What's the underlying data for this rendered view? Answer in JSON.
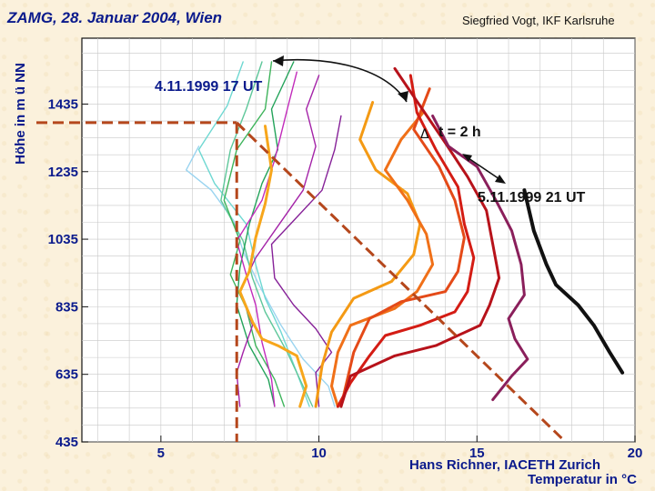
{
  "header": {
    "left_title": "ZAMG, 28. Januar 2004, Wien",
    "right_title": "Siegfried Vogt, IKF Karlsruhe"
  },
  "footer": {
    "credit": "Hans Richner, IACETH Zurich"
  },
  "chart_data": {
    "type": "line",
    "title": "",
    "xlabel": "Temperatur in °C",
    "ylabel": "Höhe in m ü NN",
    "xlim": [
      2.5,
      20
    ],
    "ylim": [
      435,
      1630
    ],
    "x_ticks": [
      5,
      10,
      15,
      20
    ],
    "y_ticks": [
      435,
      635,
      835,
      1035,
      1235,
      1435
    ],
    "grid": true,
    "annotations": {
      "start_label": "4.11.1999 17 UT",
      "end_label": "5.11.1999 21 UT",
      "interval_label": "t = 2 h",
      "triangle_symbol": "Δ"
    },
    "guides": {
      "dashed_color": "#b5471c",
      "vertical_x": 7.4,
      "horizontal_y": 1380,
      "diagonal": [
        [
          7.4,
          1380
        ],
        [
          17.8,
          435
        ]
      ]
    },
    "series": [
      {
        "color": "#9ad4f0",
        "points": [
          [
            6.2,
            1310
          ],
          [
            5.8,
            1240
          ],
          [
            6.6,
            1180
          ],
          [
            7.3,
            1090
          ],
          [
            7.6,
            1000
          ],
          [
            8.1,
            900
          ],
          [
            8.8,
            780
          ],
          [
            9.5,
            680
          ],
          [
            10.3,
            600
          ],
          [
            10.5,
            540
          ]
        ]
      },
      {
        "color": "#6fd8d2",
        "points": [
          [
            7.6,
            1560
          ],
          [
            7.1,
            1430
          ],
          [
            6.2,
            1300
          ],
          [
            6.7,
            1200
          ],
          [
            7.7,
            1080
          ],
          [
            8.0,
            960
          ],
          [
            8.3,
            860
          ],
          [
            8.8,
            760
          ],
          [
            9.3,
            640
          ],
          [
            9.7,
            540
          ]
        ]
      },
      {
        "color": "#5ec79a",
        "points": [
          [
            8.2,
            1560
          ],
          [
            7.7,
            1420
          ],
          [
            7.2,
            1300
          ],
          [
            6.9,
            1150
          ],
          [
            7.6,
            1030
          ],
          [
            7.9,
            920
          ],
          [
            8.3,
            820
          ],
          [
            9.0,
            700
          ],
          [
            9.4,
            620
          ],
          [
            9.8,
            540
          ]
        ]
      },
      {
        "color": "#3fb45c",
        "points": [
          [
            8.5,
            1560
          ],
          [
            8.3,
            1420
          ],
          [
            7.4,
            1300
          ],
          [
            7.0,
            1150
          ],
          [
            7.5,
            1030
          ],
          [
            7.2,
            930
          ],
          [
            7.7,
            830
          ],
          [
            8.0,
            720
          ],
          [
            8.6,
            620
          ],
          [
            8.9,
            540
          ]
        ]
      },
      {
        "color": "#23a35a",
        "points": [
          [
            9.2,
            1560
          ],
          [
            8.5,
            1420
          ],
          [
            8.7,
            1300
          ],
          [
            8.2,
            1200
          ],
          [
            7.8,
            1080
          ],
          [
            7.5,
            950
          ],
          [
            7.4,
            840
          ],
          [
            7.8,
            720
          ],
          [
            8.4,
            620
          ],
          [
            8.6,
            540
          ]
        ]
      },
      {
        "color": "#c22bbb",
        "points": [
          [
            9.3,
            1530
          ],
          [
            9.0,
            1420
          ],
          [
            8.6,
            1270
          ],
          [
            8.2,
            1150
          ],
          [
            7.4,
            1030
          ],
          [
            7.7,
            930
          ],
          [
            8.0,
            840
          ],
          [
            8.2,
            730
          ],
          [
            8.5,
            620
          ],
          [
            8.6,
            540
          ]
        ]
      },
      {
        "color": "#a423a8",
        "points": [
          [
            10.0,
            1520
          ],
          [
            9.6,
            1420
          ],
          [
            9.9,
            1310
          ],
          [
            9.5,
            1180
          ],
          [
            8.6,
            1060
          ],
          [
            8.0,
            980
          ],
          [
            7.5,
            880
          ],
          [
            7.9,
            780
          ],
          [
            7.6,
            700
          ],
          [
            7.4,
            640
          ],
          [
            7.5,
            540
          ]
        ]
      },
      {
        "color": "#862198",
        "points": [
          [
            10.7,
            1400
          ],
          [
            10.5,
            1300
          ],
          [
            10.1,
            1180
          ],
          [
            9.2,
            1090
          ],
          [
            8.5,
            1020
          ],
          [
            8.6,
            920
          ],
          [
            9.2,
            840
          ],
          [
            9.9,
            770
          ],
          [
            10.4,
            700
          ],
          [
            9.9,
            640
          ],
          [
            10.0,
            540
          ]
        ]
      },
      {
        "color": "#f7a61b",
        "points": [
          [
            8.3,
            1370
          ],
          [
            8.5,
            1240
          ],
          [
            8.3,
            1140
          ],
          [
            8.0,
            1040
          ],
          [
            7.8,
            940
          ],
          [
            7.5,
            880
          ],
          [
            7.9,
            790
          ],
          [
            8.2,
            740
          ],
          [
            8.7,
            720
          ],
          [
            9.3,
            690
          ],
          [
            9.6,
            600
          ],
          [
            9.4,
            540
          ]
        ]
      },
      {
        "color": "#f49a14",
        "points": [
          [
            11.7,
            1440
          ],
          [
            11.3,
            1330
          ],
          [
            11.8,
            1240
          ],
          [
            12.8,
            1170
          ],
          [
            13.2,
            1080
          ],
          [
            13.0,
            990
          ],
          [
            12.3,
            910
          ],
          [
            11.1,
            860
          ],
          [
            10.4,
            760
          ],
          [
            10.1,
            660
          ],
          [
            9.9,
            540
          ]
        ]
      },
      {
        "color": "#f07018",
        "points": [
          [
            13.3,
            1410
          ],
          [
            12.6,
            1330
          ],
          [
            12.1,
            1240
          ],
          [
            12.8,
            1150
          ],
          [
            13.4,
            1050
          ],
          [
            13.6,
            960
          ],
          [
            13.1,
            880
          ],
          [
            12.4,
            830
          ],
          [
            11.0,
            780
          ],
          [
            10.6,
            700
          ],
          [
            10.4,
            600
          ],
          [
            10.6,
            540
          ]
        ]
      },
      {
        "color": "#e44a18",
        "points": [
          [
            13.5,
            1480
          ],
          [
            13.0,
            1360
          ],
          [
            13.8,
            1250
          ],
          [
            14.3,
            1150
          ],
          [
            14.6,
            1040
          ],
          [
            14.4,
            940
          ],
          [
            14.0,
            880
          ],
          [
            12.6,
            850
          ],
          [
            11.6,
            800
          ],
          [
            11.1,
            700
          ],
          [
            10.9,
            620
          ],
          [
            10.7,
            540
          ]
        ]
      },
      {
        "color": "#d41c14",
        "points": [
          [
            12.9,
            1520
          ],
          [
            13.1,
            1410
          ],
          [
            13.7,
            1300
          ],
          [
            14.4,
            1190
          ],
          [
            14.6,
            1080
          ],
          [
            14.9,
            980
          ],
          [
            14.7,
            880
          ],
          [
            14.3,
            820
          ],
          [
            13.2,
            780
          ],
          [
            12.1,
            750
          ],
          [
            11.6,
            690
          ],
          [
            11.0,
            610
          ],
          [
            10.6,
            540
          ]
        ]
      },
      {
        "color": "#b7121a",
        "points": [
          [
            12.4,
            1540
          ],
          [
            13.2,
            1430
          ],
          [
            14.0,
            1320
          ],
          [
            14.7,
            1220
          ],
          [
            15.3,
            1120
          ],
          [
            15.5,
            1020
          ],
          [
            15.7,
            920
          ],
          [
            15.4,
            840
          ],
          [
            15.1,
            780
          ],
          [
            13.7,
            720
          ],
          [
            12.4,
            690
          ],
          [
            11.0,
            630
          ],
          [
            10.7,
            540
          ]
        ]
      },
      {
        "color": "#8a1f5b",
        "points": [
          [
            13.6,
            1400
          ],
          [
            14.1,
            1310
          ],
          [
            15.0,
            1250
          ],
          [
            15.6,
            1150
          ],
          [
            16.1,
            1060
          ],
          [
            16.4,
            960
          ],
          [
            16.5,
            870
          ],
          [
            16.0,
            800
          ],
          [
            16.2,
            740
          ],
          [
            16.6,
            680
          ],
          [
            16.1,
            630
          ],
          [
            15.5,
            560
          ]
        ]
      },
      {
        "color": "#111111",
        "points": [
          [
            16.5,
            1180
          ],
          [
            16.8,
            1060
          ],
          [
            17.2,
            960
          ],
          [
            17.5,
            900
          ],
          [
            18.2,
            840
          ],
          [
            18.7,
            780
          ],
          [
            19.2,
            700
          ],
          [
            19.6,
            640
          ]
        ]
      }
    ]
  }
}
